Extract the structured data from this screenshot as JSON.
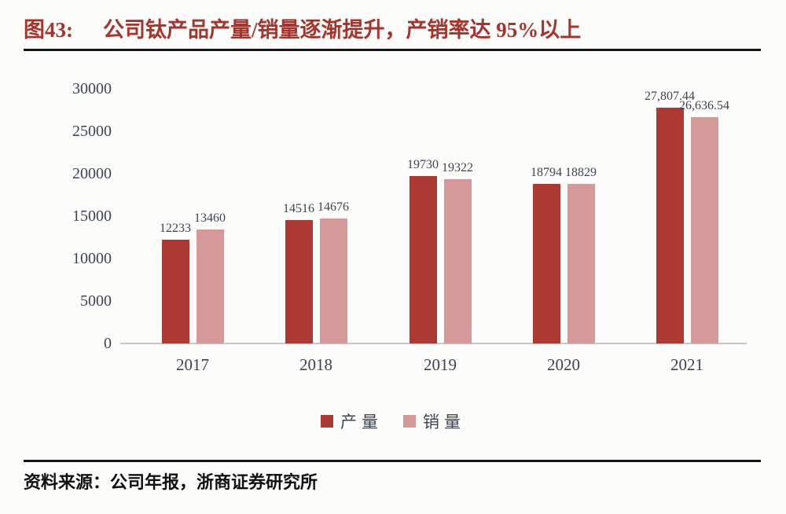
{
  "figure": {
    "label": "图43:",
    "title": "公司钛产品产量/销量逐渐提升，产销率达 95%以上"
  },
  "source": "资料来源：公司年报，浙商证券研究所",
  "colors": {
    "title_red": "#a5342c",
    "production_bar": "#ac3a32",
    "sales_bar": "#d6999a",
    "label_text": "#3c4453",
    "axis_line": "#c6c6cc"
  },
  "chart_data": {
    "type": "bar",
    "title": "公司钛产品产量/销量逐渐提升，产销率达 95%以上",
    "categories": [
      "2017",
      "2018",
      "2019",
      "2020",
      "2021"
    ],
    "series": [
      {
        "name": "产量",
        "color": "#ac3a32",
        "values": [
          12233,
          14516,
          19730,
          18794,
          27807.44
        ],
        "labels": [
          "12233",
          "14516",
          "19730",
          "18794",
          "27,807.44"
        ]
      },
      {
        "name": "销量",
        "color": "#d6999a",
        "values": [
          13460,
          14676,
          19322,
          18829,
          26636.54
        ],
        "labels": [
          "13460",
          "14676",
          "19322",
          "18829",
          "26,636.54"
        ]
      }
    ],
    "xlabel": "",
    "ylabel": "",
    "ylim": [
      0,
      30000
    ],
    "yticks": [
      0,
      5000,
      10000,
      15000,
      20000,
      25000,
      30000
    ],
    "grid": false,
    "legend_position": "bottom"
  }
}
